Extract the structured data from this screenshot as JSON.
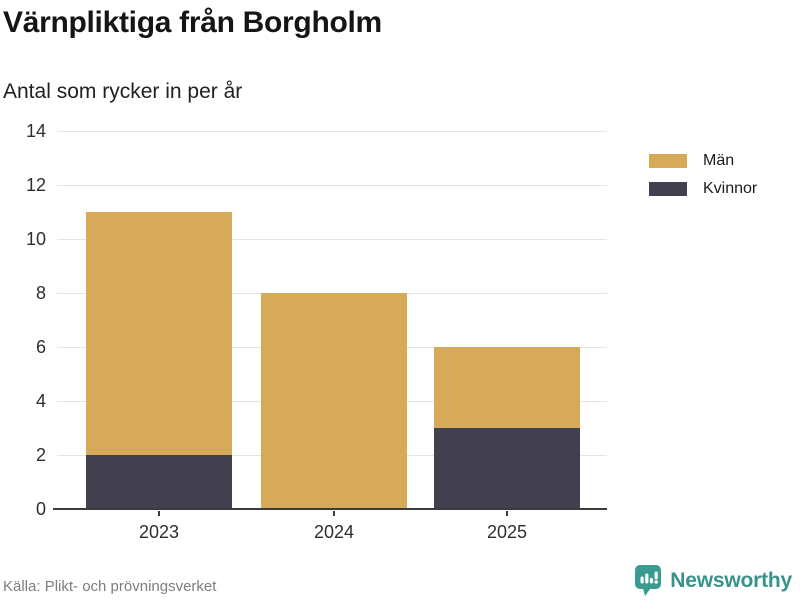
{
  "header": {
    "title": "Värnpliktiga från Borgholm",
    "subtitle": "Antal som rycker in per år"
  },
  "chart_data": {
    "type": "bar",
    "stacked": true,
    "title": "Värnpliktiga från Borgholm",
    "subtitle": "Antal som rycker in per år",
    "xlabel": "",
    "ylabel": "",
    "categories": [
      "2023",
      "2024",
      "2025"
    ],
    "series": [
      {
        "name": "Kvinnor",
        "color": "#42404f",
        "values": [
          2,
          0,
          3
        ]
      },
      {
        "name": "Män",
        "color": "#d6aa59",
        "values": [
          9,
          8,
          3
        ]
      }
    ],
    "totals": [
      11,
      8,
      6
    ],
    "ylim": [
      0,
      14
    ],
    "yticks": [
      0,
      2,
      4,
      6,
      8,
      10,
      12,
      14
    ],
    "grid": "horizontal",
    "legend_position": "top-right"
  },
  "legend": {
    "items": [
      {
        "label": "Män",
        "color": "#d6aa59"
      },
      {
        "label": "Kvinnor",
        "color": "#42404f"
      }
    ]
  },
  "footer": {
    "source": "Källa: Plikt- och prövningsverket",
    "brand": "Newsworthy",
    "brand_icon": "bar-chart-speech-bubble-icon"
  },
  "colors": {
    "men": "#d6aa59",
    "women": "#42404f",
    "gridline": "#e4e4e4",
    "axis": "#3c3c3c",
    "brand_teal": "#38938d",
    "source_gray": "#7e7e7e"
  }
}
